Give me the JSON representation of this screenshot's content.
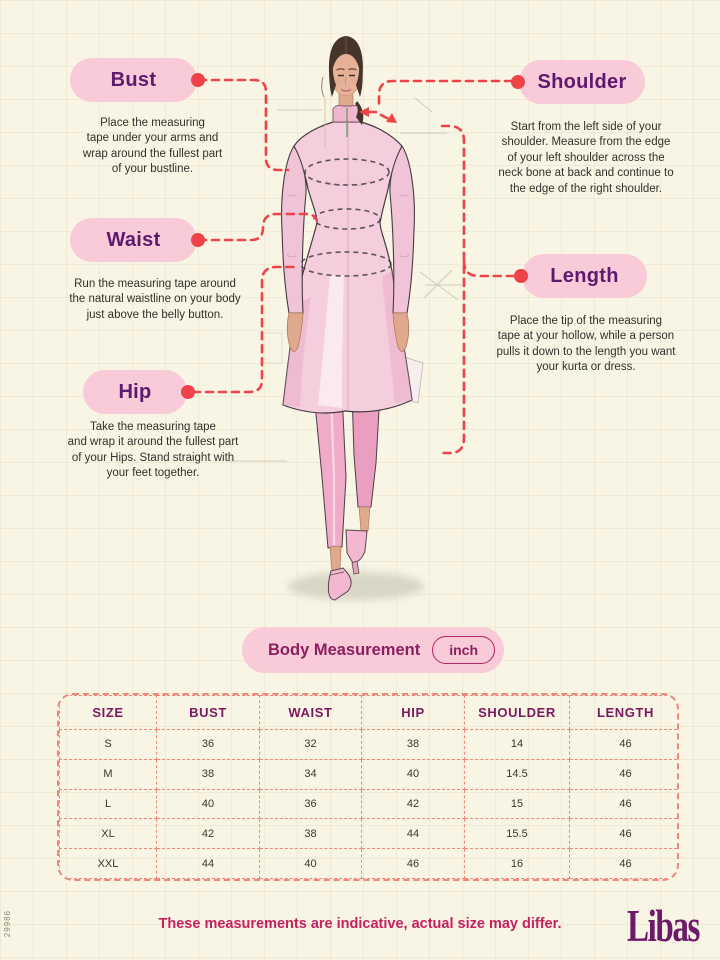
{
  "side_code": "29986",
  "theme": {
    "background": "#f8f5e5",
    "pill_pink": "#f9cad7",
    "accent_red": "#ee4348",
    "title_purple": "#5e1a6e",
    "magenta": "#8d1e62",
    "footer_pink": "#c6205f",
    "table_dash": "#f2867c",
    "brand_purple": "#6d1a68"
  },
  "labels": {
    "bust": {
      "title": "Bust",
      "desc": "Place the measuring\ntape under your arms and\nwrap around the fullest part\nof your bustline."
    },
    "waist": {
      "title": "Waist",
      "desc": "Run the measuring tape around\nthe natural waistline on your body\njust above the belly button."
    },
    "hip": {
      "title": "Hip",
      "desc": "Take the measuring tape\nand wrap it around the fullest part\nof your Hips. Stand straight with\nyour feet together."
    },
    "shoulder": {
      "title": "Shoulder",
      "desc": "Start from the left side of your\nshoulder. Measure from the edge\nof your left shoulder across the\nneck bone at back and continue to\nthe edge of the right shoulder."
    },
    "length": {
      "title": "Length",
      "desc": "Place the tip of the measuring\ntape at your hollow, while a person\npulls it down to the length you want\nyour kurta or dress."
    }
  },
  "measurement_bar": {
    "title": "Body Measurement",
    "unit": "inch"
  },
  "table": {
    "headers": [
      "SIZE",
      "BUST",
      "WAIST",
      "HIP",
      "SHOULDER",
      "LENGTH"
    ],
    "rows": [
      [
        "S",
        "36",
        "32",
        "38",
        "14",
        "46"
      ],
      [
        "M",
        "38",
        "34",
        "40",
        "14.5",
        "46"
      ],
      [
        "L",
        "40",
        "36",
        "42",
        "15",
        "46"
      ],
      [
        "XL",
        "42",
        "38",
        "44",
        "15.5",
        "46"
      ],
      [
        "XXL",
        "44",
        "40",
        "46",
        "16",
        "46"
      ]
    ]
  },
  "footer": {
    "note": "These measurements are indicative, actual size may differ.",
    "brand": "Libas"
  },
  "illustration": {
    "name": "fashion-sketch-woman-in-pink-kurta"
  }
}
